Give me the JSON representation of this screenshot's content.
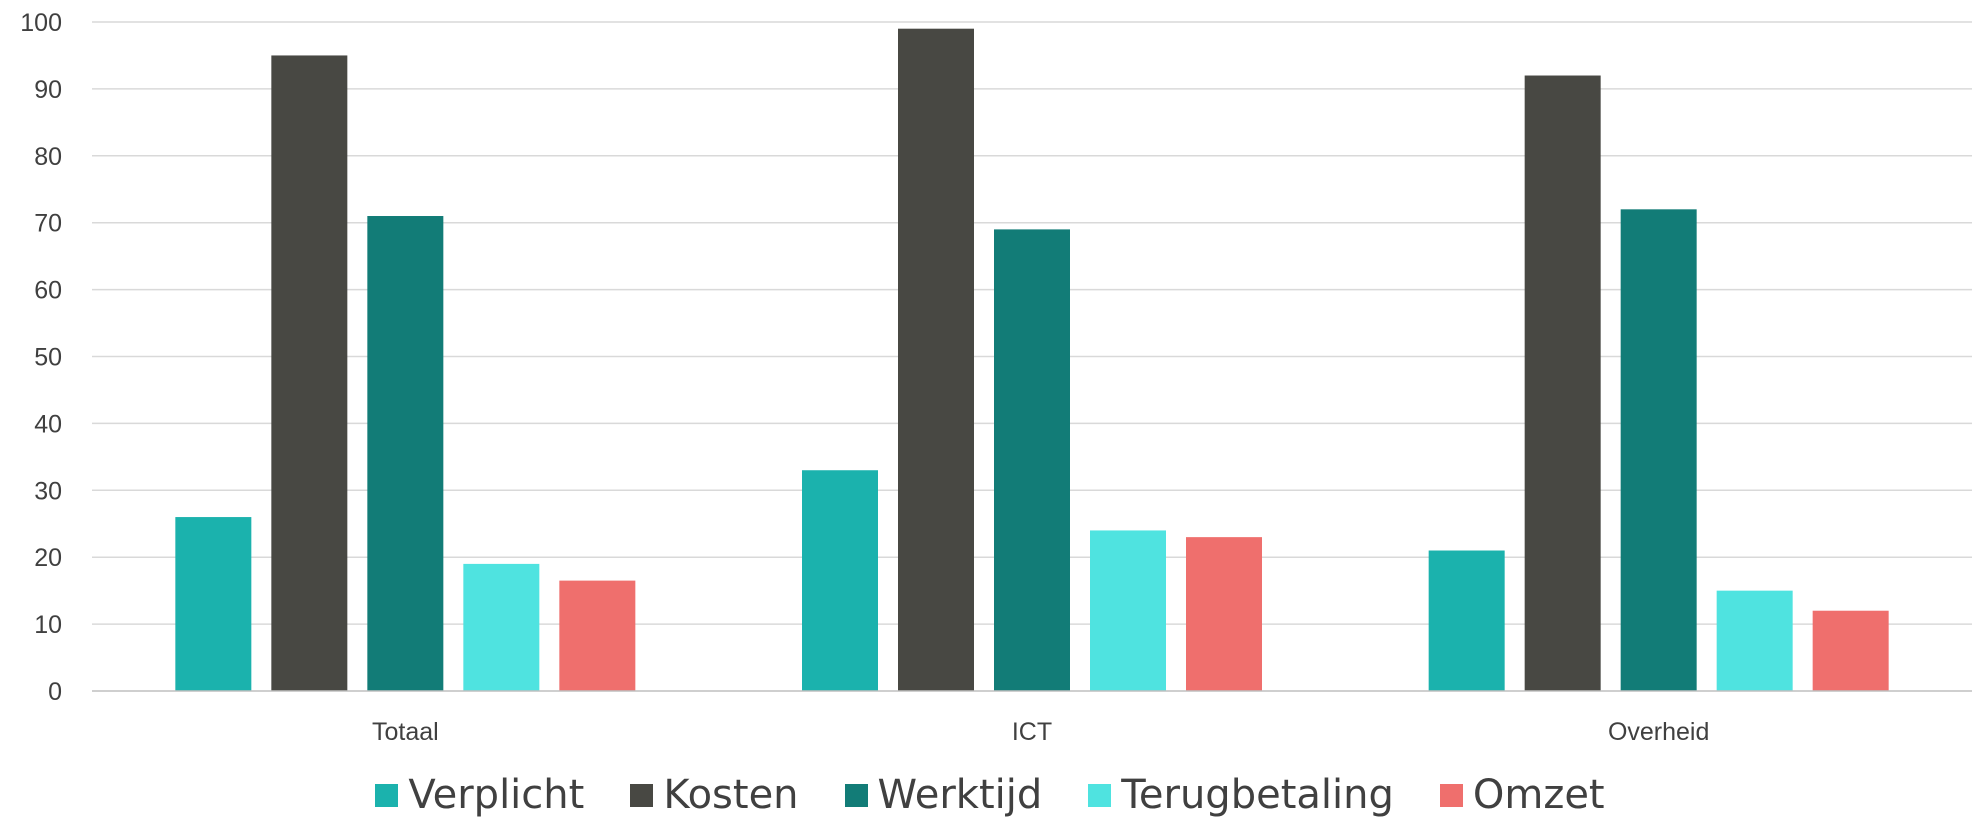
{
  "chart_data": {
    "type": "bar",
    "categories": [
      "Totaal",
      "ICT",
      "Overheid"
    ],
    "series": [
      {
        "name": "Verplicht",
        "color": "#1bb2ad",
        "values": [
          26,
          33,
          21
        ]
      },
      {
        "name": "Kosten",
        "color": "#484843",
        "values": [
          95,
          99,
          92
        ]
      },
      {
        "name": "Werktijd",
        "color": "#127c77",
        "values": [
          71,
          69,
          72
        ]
      },
      {
        "name": "Terugbetaling",
        "color": "#4fe3e0",
        "values": [
          19,
          24,
          15
        ]
      },
      {
        "name": "Omzet",
        "color": "#ef6f6d",
        "values": [
          16.5,
          23,
          12
        ]
      }
    ],
    "ylim": [
      0,
      100
    ],
    "yticks": [
      "0",
      "10",
      "20",
      "30",
      "40",
      "50",
      "60",
      "70",
      "80",
      "90",
      "100"
    ],
    "grid": true,
    "legend_position": "bottom"
  }
}
